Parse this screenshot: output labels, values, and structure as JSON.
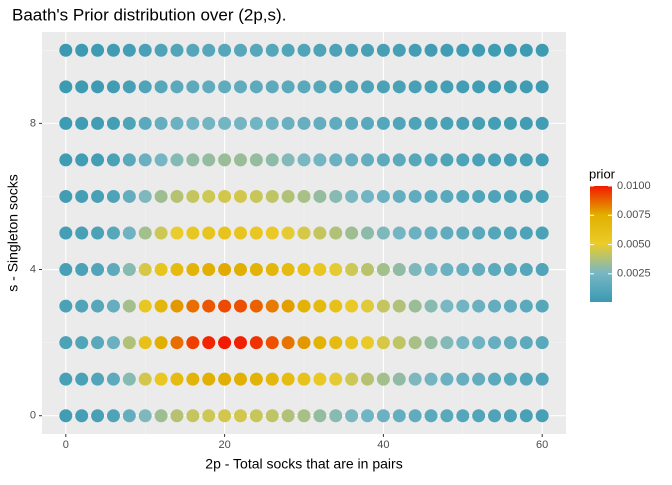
{
  "chart_data": {
    "type": "scatter",
    "title": "Baath's Prior distribution over (2p,s).",
    "x_label": "2p - Total socks that are in pairs",
    "y_label": "s - Singleton socks",
    "legend_title": "prior",
    "x": [
      0,
      2,
      4,
      6,
      8,
      10,
      12,
      14,
      16,
      18,
      20,
      22,
      24,
      26,
      28,
      30,
      32,
      34,
      36,
      38,
      40,
      42,
      44,
      46,
      48,
      50,
      52,
      54,
      56,
      58,
      60
    ],
    "y": [
      0,
      1,
      2,
      3,
      4,
      5,
      6,
      7,
      8,
      9,
      10
    ],
    "values": [
      [
        0.00036,
        0.00045,
        0.00059,
        0.0009,
        0.0017,
        0.0027,
        0.0034,
        0.0039,
        0.0042,
        0.0044,
        0.0045,
        0.0045,
        0.0043,
        0.0041,
        0.0038,
        0.0036,
        0.0032,
        0.0029,
        0.0026,
        0.0023,
        0.0021,
        0.0018,
        0.0016,
        0.0014,
        0.0013,
        0.0011,
        0.001,
        0.00086,
        0.00077,
        0.00068,
        0.00059
      ],
      [
        0.0006,
        0.00075,
        0.00098,
        0.0015,
        0.0029,
        0.0045,
        0.0056,
        0.0065,
        0.0071,
        0.0074,
        0.0075,
        0.0074,
        0.0072,
        0.0068,
        0.0064,
        0.0059,
        0.0054,
        0.0049,
        0.0044,
        0.0039,
        0.0035,
        0.0031,
        0.0027,
        0.0024,
        0.0021,
        0.0019,
        0.0017,
        0.0014,
        0.0013,
        0.0011,
        0.00098
      ],
      [
        0.0008,
        0.001,
        0.0013,
        0.002,
        0.0038,
        0.006,
        0.0075,
        0.0086,
        0.0094,
        0.0098,
        0.01,
        0.0099,
        0.0096,
        0.0091,
        0.0085,
        0.0079,
        0.0072,
        0.0065,
        0.0058,
        0.0052,
        0.0046,
        0.0041,
        0.0036,
        0.0032,
        0.0028,
        0.0025,
        0.0022,
        0.0019,
        0.0017,
        0.0015,
        0.0013
      ],
      [
        0.00074,
        0.00092,
        0.0012,
        0.0018,
        0.0035,
        0.0055,
        0.0069,
        0.0079,
        0.0086,
        0.009,
        0.0092,
        0.0091,
        0.0088,
        0.0084,
        0.0078,
        0.0073,
        0.0066,
        0.006,
        0.0053,
        0.0048,
        0.0042,
        0.0038,
        0.0033,
        0.0029,
        0.0026,
        0.0023,
        0.002,
        0.0017,
        0.0016,
        0.0014,
        0.0012
      ],
      [
        0.00061,
        0.00076,
        0.00099,
        0.0015,
        0.0029,
        0.0046,
        0.0057,
        0.0065,
        0.0071,
        0.0074,
        0.0076,
        0.0075,
        0.0073,
        0.0069,
        0.0065,
        0.006,
        0.0055,
        0.0049,
        0.0044,
        0.004,
        0.0035,
        0.0031,
        0.0027,
        0.0024,
        0.0021,
        0.0019,
        0.0017,
        0.0014,
        0.0013,
        0.0011,
        0.00099
      ],
      [
        0.00046,
        0.00058,
        0.00075,
        0.0012,
        0.0022,
        0.0035,
        0.0044,
        0.005,
        0.0055,
        0.0057,
        0.0058,
        0.0057,
        0.0056,
        0.0053,
        0.0049,
        0.0046,
        0.0042,
        0.0038,
        0.0034,
        0.003,
        0.0027,
        0.0024,
        0.0021,
        0.0019,
        0.0016,
        0.0015,
        0.0013,
        0.0011,
        0.00099,
        0.00087,
        0.00075
      ],
      [
        0.00036,
        0.00045,
        0.00059,
        0.0009,
        0.0017,
        0.0027,
        0.0034,
        0.0039,
        0.0042,
        0.0044,
        0.0045,
        0.0045,
        0.0043,
        0.0041,
        0.0038,
        0.0036,
        0.0032,
        0.0029,
        0.0026,
        0.0023,
        0.0021,
        0.0018,
        0.0016,
        0.0014,
        0.0013,
        0.0011,
        0.001,
        0.00086,
        0.00077,
        0.00068,
        0.00059
      ],
      [
        0.00026,
        0.00033,
        0.00043,
        0.00066,
        0.0013,
        0.002,
        0.0025,
        0.0028,
        0.0031,
        0.0032,
        0.0033,
        0.0033,
        0.0032,
        0.003,
        0.0028,
        0.0026,
        0.0024,
        0.0021,
        0.0019,
        0.0017,
        0.0015,
        0.0014,
        0.0012,
        0.0011,
        0.00092,
        0.00083,
        0.00073,
        0.00063,
        0.00056,
        0.0005,
        0.00043
      ],
      [
        0.00019,
        0.00024,
        0.00031,
        0.00048,
        0.00091,
        0.0014,
        0.0018,
        0.0021,
        0.0023,
        0.0024,
        0.0024,
        0.0024,
        0.0023,
        0.0022,
        0.002,
        0.0019,
        0.0017,
        0.0016,
        0.0014,
        0.0013,
        0.0011,
        0.00098,
        0.00086,
        0.00077,
        0.00067,
        0.0006,
        0.00053,
        0.00046,
        0.00041,
        0.00036,
        0.00031
      ],
      [
        0.00013,
        0.00016,
        0.00021,
        0.00032,
        0.00061,
        0.00096,
        0.0012,
        0.0014,
        0.0015,
        0.0016,
        0.0016,
        0.0016,
        0.0015,
        0.0015,
        0.0014,
        0.0013,
        0.0012,
        0.001,
        0.00093,
        0.00083,
        0.00074,
        0.00066,
        0.00058,
        0.00051,
        0.00045,
        0.0004,
        0.00035,
        0.0003,
        0.00027,
        0.00024,
        0.00021
      ],
      [
        9.6e-05,
        0.00012,
        0.00016,
        0.00024,
        0.00046,
        0.00072,
        0.0009,
        0.001,
        0.0011,
        0.0012,
        0.0012,
        0.0012,
        0.0012,
        0.0011,
        0.001,
        0.00095,
        0.00086,
        0.00078,
        0.0007,
        0.00062,
        0.00055,
        0.00049,
        0.00043,
        0.00038,
        0.00034,
        0.0003,
        0.00026,
        0.00023,
        0.0002,
        0.00018,
        0.00016
      ]
    ],
    "colors": [
      "#3b9ab2",
      "#78b7c5",
      "#ebcc2a",
      "#e1af00",
      "#f21a00"
    ],
    "xlim": [
      -3,
      63
    ],
    "ylim": [
      -0.5,
      10.5
    ],
    "xticks": [
      0,
      20,
      40,
      60
    ],
    "yticks": [
      0,
      4,
      8
    ],
    "xminor": [
      10,
      30,
      50
    ],
    "yminor": [
      2,
      6,
      10
    ],
    "legend_ticks": [
      0.0025,
      {
        "value": 0.005,
        "label": "0.0050"
      },
      0.0075,
      {
        "value": 0.01,
        "label": "0.0100"
      }
    ],
    "grid": true,
    "legend_position": "right"
  }
}
